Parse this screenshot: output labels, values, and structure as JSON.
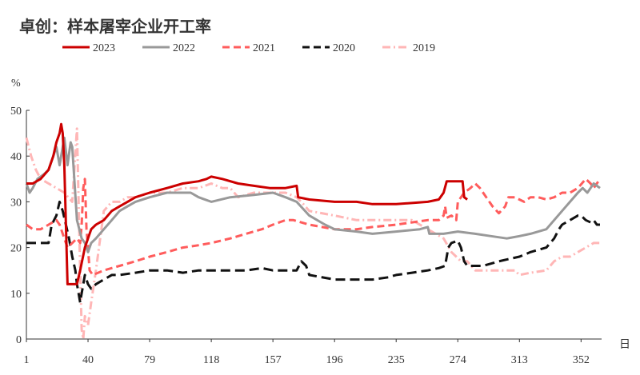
{
  "chart_data": {
    "type": "line",
    "title": "卓创：样本屠宰企业开工率",
    "ylabel": "%",
    "xlabel": "日",
    "ylim": [
      0,
      50
    ],
    "xlim": [
      1,
      365
    ],
    "yticks": [
      0,
      10,
      20,
      30,
      40,
      50
    ],
    "xticks": [
      1,
      40,
      79,
      118,
      157,
      196,
      235,
      274,
      313,
      352
    ],
    "grid": false,
    "legend_position": "top",
    "series": [
      {
        "name": "2023",
        "color": "#cc0000",
        "dash": "solid",
        "points": [
          [
            1,
            34
          ],
          [
            5,
            34
          ],
          [
            10,
            35
          ],
          [
            15,
            37
          ],
          [
            18,
            40
          ],
          [
            20,
            43
          ],
          [
            22,
            45
          ],
          [
            23,
            47
          ],
          [
            24,
            45
          ],
          [
            25,
            38
          ],
          [
            27,
            12
          ],
          [
            33,
            12
          ],
          [
            35,
            15
          ],
          [
            38,
            20
          ],
          [
            40,
            22
          ],
          [
            42,
            24
          ],
          [
            45,
            25
          ],
          [
            50,
            26
          ],
          [
            55,
            28
          ],
          [
            60,
            29
          ],
          [
            65,
            30
          ],
          [
            70,
            31
          ],
          [
            79,
            32
          ],
          [
            90,
            33
          ],
          [
            100,
            34
          ],
          [
            110,
            34.5
          ],
          [
            115,
            35
          ],
          [
            118,
            35.5
          ],
          [
            125,
            35
          ],
          [
            135,
            34
          ],
          [
            145,
            33.5
          ],
          [
            155,
            33
          ],
          [
            165,
            33
          ],
          [
            172,
            33.5
          ],
          [
            173,
            31
          ],
          [
            180,
            30.5
          ],
          [
            196,
            30
          ],
          [
            210,
            30
          ],
          [
            220,
            29.5
          ],
          [
            235,
            29.5
          ],
          [
            255,
            30
          ],
          [
            262,
            30.5
          ],
          [
            265,
            32
          ],
          [
            267,
            34.5
          ],
          [
            274,
            34.5
          ],
          [
            277,
            34.5
          ],
          [
            278,
            31
          ],
          [
            280,
            30.5
          ]
        ]
      },
      {
        "name": "2022",
        "color": "#999999",
        "dash": "solid",
        "points": [
          [
            1,
            34
          ],
          [
            3,
            32
          ],
          [
            5,
            33
          ],
          [
            8,
            35
          ],
          [
            12,
            36
          ],
          [
            15,
            37
          ],
          [
            18,
            40
          ],
          [
            20,
            42
          ],
          [
            21,
            40
          ],
          [
            22,
            38
          ],
          [
            24,
            42
          ],
          [
            25,
            44
          ],
          [
            27,
            38
          ],
          [
            29,
            43
          ],
          [
            30,
            42
          ],
          [
            33,
            26
          ],
          [
            36,
            22
          ],
          [
            38,
            21
          ],
          [
            39,
            20
          ],
          [
            40,
            19
          ],
          [
            42,
            21
          ],
          [
            45,
            22
          ],
          [
            50,
            24
          ],
          [
            55,
            26
          ],
          [
            60,
            28
          ],
          [
            65,
            29
          ],
          [
            70,
            30
          ],
          [
            79,
            31
          ],
          [
            90,
            32
          ],
          [
            105,
            32
          ],
          [
            110,
            31
          ],
          [
            118,
            30
          ],
          [
            130,
            31
          ],
          [
            145,
            31.5
          ],
          [
            157,
            32
          ],
          [
            165,
            31
          ],
          [
            172,
            30
          ],
          [
            180,
            27
          ],
          [
            190,
            25
          ],
          [
            196,
            24
          ],
          [
            210,
            23.5
          ],
          [
            220,
            23
          ],
          [
            235,
            23.5
          ],
          [
            250,
            24
          ],
          [
            255,
            24.5
          ],
          [
            256,
            23
          ],
          [
            265,
            23
          ],
          [
            274,
            23.5
          ],
          [
            285,
            23
          ],
          [
            295,
            22.5
          ],
          [
            305,
            22
          ],
          [
            313,
            22.5
          ],
          [
            320,
            23
          ],
          [
            330,
            24
          ],
          [
            335,
            26
          ],
          [
            340,
            28
          ],
          [
            345,
            30
          ],
          [
            350,
            32
          ],
          [
            353,
            33
          ],
          [
            356,
            32
          ],
          [
            358,
            33
          ],
          [
            360,
            34
          ],
          [
            362,
            33.5
          ],
          [
            364,
            33
          ]
        ]
      },
      {
        "name": "2021",
        "color": "#ff5c5c",
        "dash": "dash",
        "points": [
          [
            1,
            25
          ],
          [
            5,
            24
          ],
          [
            10,
            24
          ],
          [
            15,
            25
          ],
          [
            20,
            26
          ],
          [
            22,
            25
          ],
          [
            25,
            22
          ],
          [
            27,
            20
          ],
          [
            30,
            21
          ],
          [
            33,
            22
          ],
          [
            35,
            21
          ],
          [
            36,
            25
          ],
          [
            37,
            33
          ],
          [
            38,
            35
          ],
          [
            39,
            24
          ],
          [
            40,
            20
          ],
          [
            41,
            15
          ],
          [
            43,
            14
          ],
          [
            50,
            15
          ],
          [
            60,
            16
          ],
          [
            70,
            17
          ],
          [
            79,
            18
          ],
          [
            90,
            19
          ],
          [
            100,
            20
          ],
          [
            110,
            20.5
          ],
          [
            118,
            21
          ],
          [
            130,
            22
          ],
          [
            140,
            23
          ],
          [
            150,
            24
          ],
          [
            157,
            25
          ],
          [
            165,
            26
          ],
          [
            170,
            26
          ],
          [
            180,
            25
          ],
          [
            196,
            24
          ],
          [
            210,
            24
          ],
          [
            220,
            24.5
          ],
          [
            235,
            25
          ],
          [
            245,
            25.5
          ],
          [
            255,
            26
          ],
          [
            262,
            26
          ],
          [
            265,
            27
          ],
          [
            266,
            29
          ],
          [
            267,
            26.5
          ],
          [
            270,
            27
          ],
          [
            273,
            26
          ],
          [
            274,
            30
          ],
          [
            278,
            32
          ],
          [
            282,
            33
          ],
          [
            285,
            34
          ],
          [
            288,
            33
          ],
          [
            292,
            31
          ],
          [
            296,
            29
          ],
          [
            300,
            27.5
          ],
          [
            304,
            29
          ],
          [
            306,
            31
          ],
          [
            310,
            31
          ],
          [
            316,
            30
          ],
          [
            320,
            31
          ],
          [
            325,
            31
          ],
          [
            330,
            30.5
          ],
          [
            335,
            31
          ],
          [
            340,
            32
          ],
          [
            345,
            32
          ],
          [
            350,
            33
          ],
          [
            355,
            35
          ],
          [
            358,
            34
          ],
          [
            360,
            33
          ],
          [
            362,
            34
          ],
          [
            364,
            35
          ]
        ]
      },
      {
        "name": "2020",
        "color": "#111111",
        "dash": "longdash",
        "points": [
          [
            1,
            21
          ],
          [
            5,
            21
          ],
          [
            10,
            21
          ],
          [
            15,
            21
          ],
          [
            17,
            25
          ],
          [
            20,
            27
          ],
          [
            22,
            30
          ],
          [
            24,
            28
          ],
          [
            26,
            25
          ],
          [
            28,
            22
          ],
          [
            30,
            18
          ],
          [
            32,
            15
          ],
          [
            33,
            12
          ],
          [
            34,
            10
          ],
          [
            35,
            8
          ],
          [
            36,
            10
          ],
          [
            37,
            12
          ],
          [
            38,
            14
          ],
          [
            40,
            12
          ],
          [
            42,
            11
          ],
          [
            45,
            12
          ],
          [
            50,
            13
          ],
          [
            55,
            14
          ],
          [
            60,
            14
          ],
          [
            70,
            14.5
          ],
          [
            79,
            15
          ],
          [
            90,
            15
          ],
          [
            100,
            14.5
          ],
          [
            110,
            15
          ],
          [
            118,
            15
          ],
          [
            130,
            15
          ],
          [
            140,
            15
          ],
          [
            150,
            15.5
          ],
          [
            157,
            15
          ],
          [
            165,
            15
          ],
          [
            172,
            15
          ],
          [
            175,
            17
          ],
          [
            178,
            16
          ],
          [
            180,
            14
          ],
          [
            196,
            13
          ],
          [
            210,
            13
          ],
          [
            220,
            13
          ],
          [
            230,
            13.5
          ],
          [
            235,
            14
          ],
          [
            245,
            14.5
          ],
          [
            255,
            15
          ],
          [
            262,
            15.5
          ],
          [
            266,
            16
          ],
          [
            268,
            20
          ],
          [
            270,
            21
          ],
          [
            274,
            21.5
          ],
          [
            276,
            20
          ],
          [
            278,
            17
          ],
          [
            280,
            16
          ],
          [
            290,
            16
          ],
          [
            300,
            17
          ],
          [
            313,
            18
          ],
          [
            320,
            19
          ],
          [
            330,
            20
          ],
          [
            335,
            22
          ],
          [
            338,
            24
          ],
          [
            340,
            25
          ],
          [
            345,
            26
          ],
          [
            350,
            27
          ],
          [
            352,
            27
          ],
          [
            355,
            26
          ],
          [
            358,
            25.5
          ],
          [
            360,
            26
          ],
          [
            362,
            25
          ],
          [
            364,
            25
          ]
        ]
      },
      {
        "name": "2019",
        "color": "#ffb6b6",
        "dash": "dashdot",
        "points": [
          [
            1,
            44
          ],
          [
            4,
            40
          ],
          [
            7,
            37
          ],
          [
            10,
            35
          ],
          [
            15,
            34
          ],
          [
            20,
            33
          ],
          [
            25,
            32
          ],
          [
            30,
            30
          ],
          [
            33,
            46
          ],
          [
            35,
            15
          ],
          [
            36,
            2
          ],
          [
            37,
            0
          ],
          [
            38,
            5
          ],
          [
            40,
            3
          ],
          [
            42,
            8
          ],
          [
            45,
            15
          ],
          [
            50,
            28
          ],
          [
            55,
            30
          ],
          [
            60,
            30
          ],
          [
            65,
            31
          ],
          [
            70,
            31
          ],
          [
            79,
            32
          ],
          [
            90,
            32
          ],
          [
            100,
            33
          ],
          [
            110,
            33
          ],
          [
            118,
            34
          ],
          [
            125,
            33
          ],
          [
            130,
            33
          ],
          [
            135,
            31
          ],
          [
            145,
            32
          ],
          [
            157,
            32
          ],
          [
            165,
            32
          ],
          [
            172,
            31
          ],
          [
            175,
            30
          ],
          [
            180,
            28
          ],
          [
            196,
            27
          ],
          [
            210,
            26
          ],
          [
            225,
            26
          ],
          [
            235,
            26
          ],
          [
            245,
            26
          ],
          [
            255,
            24
          ],
          [
            260,
            23
          ],
          [
            265,
            22
          ],
          [
            270,
            19
          ],
          [
            273,
            18
          ],
          [
            276,
            17
          ],
          [
            280,
            17
          ],
          [
            285,
            15
          ],
          [
            290,
            15
          ],
          [
            300,
            15
          ],
          [
            310,
            15
          ],
          [
            313,
            14
          ],
          [
            320,
            14.5
          ],
          [
            330,
            15
          ],
          [
            335,
            17
          ],
          [
            340,
            18
          ],
          [
            345,
            18
          ],
          [
            350,
            19
          ],
          [
            355,
            20
          ],
          [
            360,
            21
          ],
          [
            364,
            21
          ]
        ]
      }
    ]
  }
}
